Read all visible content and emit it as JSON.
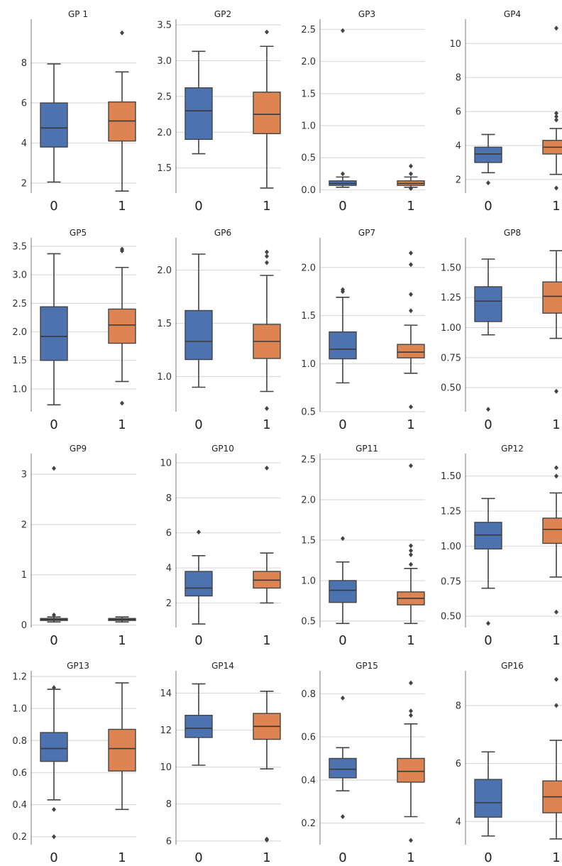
{
  "colors": {
    "group0": "#4c72b0",
    "group1": "#dd8452",
    "grid": "#dadada",
    "spine": "#777777",
    "whisker": "#444444"
  },
  "chart_data": [
    {
      "type": "box",
      "title": "GP 1",
      "categories": [
        "0",
        "1"
      ],
      "ylim": [
        1.5,
        9.9
      ],
      "yticks": [
        2,
        4,
        6,
        8
      ],
      "boxes": [
        {
          "group": "0",
          "min": 2.05,
          "q1": 3.8,
          "median": 4.75,
          "q3": 6.0,
          "max": 7.95,
          "outliers": []
        },
        {
          "group": "1",
          "min": 1.6,
          "q1": 4.1,
          "median": 5.1,
          "q3": 6.05,
          "max": 7.55,
          "outliers": [
            9.5
          ]
        }
      ]
    },
    {
      "type": "box",
      "title": "GP2",
      "categories": [
        "0",
        "1"
      ],
      "ylim": [
        1.15,
        3.5
      ],
      "yticks": [
        1.5,
        2.0,
        2.5,
        3.0,
        3.5
      ],
      "boxes": [
        {
          "group": "0",
          "min": 1.7,
          "q1": 1.9,
          "median": 2.3,
          "q3": 2.62,
          "max": 3.13,
          "outliers": []
        },
        {
          "group": "1",
          "min": 1.22,
          "q1": 1.98,
          "median": 2.25,
          "q3": 2.56,
          "max": 3.2,
          "outliers": [
            3.4
          ]
        }
      ]
    },
    {
      "type": "box",
      "title": "GP3",
      "categories": [
        "0",
        "1"
      ],
      "ylim": [
        -0.05,
        2.57
      ],
      "yticks": [
        0.0,
        0.5,
        1.0,
        1.5,
        2.0,
        2.5
      ],
      "boxes": [
        {
          "group": "0",
          "min": 0.04,
          "q1": 0.07,
          "median": 0.1,
          "q3": 0.14,
          "max": 0.2,
          "outliers": [
            0.25,
            2.48
          ]
        },
        {
          "group": "1",
          "min": 0.04,
          "q1": 0.07,
          "median": 0.1,
          "q3": 0.14,
          "max": 0.2,
          "outliers": [
            0.02,
            0.25,
            0.37
          ]
        }
      ]
    },
    {
      "type": "box",
      "title": "GP4",
      "categories": [
        "0",
        "1"
      ],
      "ylim": [
        1.2,
        11.1
      ],
      "yticks": [
        2,
        4,
        6,
        8,
        10
      ],
      "boxes": [
        {
          "group": "0",
          "min": 2.4,
          "q1": 3.0,
          "median": 3.5,
          "q3": 3.9,
          "max": 4.65,
          "outliers": [
            1.8
          ]
        },
        {
          "group": "1",
          "min": 2.3,
          "q1": 3.5,
          "median": 3.9,
          "q3": 4.3,
          "max": 5.0,
          "outliers": [
            1.5,
            5.5,
            5.7,
            5.9,
            10.9
          ]
        }
      ]
    },
    {
      "type": "box",
      "title": "GP5",
      "categories": [
        "0",
        "1"
      ],
      "ylim": [
        0.6,
        3.55
      ],
      "yticks": [
        1.0,
        1.5,
        2.0,
        2.5,
        3.0,
        3.5
      ],
      "boxes": [
        {
          "group": "0",
          "min": 0.72,
          "q1": 1.5,
          "median": 1.92,
          "q3": 2.44,
          "max": 3.37,
          "outliers": []
        },
        {
          "group": "1",
          "min": 1.13,
          "q1": 1.8,
          "median": 2.12,
          "q3": 2.4,
          "max": 3.13,
          "outliers": [
            0.75,
            3.42,
            3.45
          ]
        }
      ]
    },
    {
      "type": "box",
      "title": "GP6",
      "categories": [
        "0",
        "1"
      ],
      "ylim": [
        0.67,
        2.25
      ],
      "yticks": [
        1.0,
        1.5,
        2.0
      ],
      "boxes": [
        {
          "group": "0",
          "min": 0.9,
          "q1": 1.16,
          "median": 1.33,
          "q3": 1.62,
          "max": 2.15,
          "outliers": []
        },
        {
          "group": "1",
          "min": 0.86,
          "q1": 1.17,
          "median": 1.33,
          "q3": 1.49,
          "max": 1.95,
          "outliers": [
            0.7,
            2.07,
            2.13,
            2.17
          ]
        }
      ]
    },
    {
      "type": "box",
      "title": "GP7",
      "categories": [
        "0",
        "1"
      ],
      "ylim": [
        0.5,
        2.25
      ],
      "yticks": [
        0.5,
        1.0,
        1.5,
        2.0
      ],
      "boxes": [
        {
          "group": "0",
          "min": 0.8,
          "q1": 1.05,
          "median": 1.15,
          "q3": 1.33,
          "max": 1.69,
          "outliers": [
            1.75,
            1.77
          ]
        },
        {
          "group": "1",
          "min": 0.9,
          "q1": 1.06,
          "median": 1.12,
          "q3": 1.2,
          "max": 1.4,
          "outliers": [
            0.55,
            1.55,
            1.72,
            2.03,
            2.15
          ]
        }
      ]
    },
    {
      "type": "box",
      "title": "GP8",
      "categories": [
        "0",
        "1"
      ],
      "ylim": [
        0.3,
        1.7
      ],
      "yticks": [
        0.5,
        0.75,
        1.0,
        1.25,
        1.5
      ],
      "boxes": [
        {
          "group": "0",
          "min": 0.94,
          "q1": 1.05,
          "median": 1.22,
          "q3": 1.34,
          "max": 1.57,
          "outliers": [
            0.32
          ]
        },
        {
          "group": "1",
          "min": 0.91,
          "q1": 1.12,
          "median": 1.26,
          "q3": 1.38,
          "max": 1.64,
          "outliers": [
            0.47
          ]
        }
      ]
    },
    {
      "type": "box",
      "title": "GP9",
      "categories": [
        "0",
        "1"
      ],
      "ylim": [
        -0.05,
        3.3
      ],
      "yticks": [
        0,
        1,
        2,
        3
      ],
      "boxes": [
        {
          "group": "0",
          "min": 0.06,
          "q1": 0.09,
          "median": 0.11,
          "q3": 0.13,
          "max": 0.16,
          "outliers": [
            0.2,
            3.12
          ]
        },
        {
          "group": "1",
          "min": 0.06,
          "q1": 0.09,
          "median": 0.11,
          "q3": 0.13,
          "max": 0.16,
          "outliers": []
        }
      ]
    },
    {
      "type": "box",
      "title": "GP10",
      "categories": [
        "0",
        "1"
      ],
      "ylim": [
        0.6,
        10.2
      ],
      "yticks": [
        2,
        4,
        6,
        8,
        10
      ],
      "boxes": [
        {
          "group": "0",
          "min": 0.8,
          "q1": 2.4,
          "median": 2.85,
          "q3": 3.8,
          "max": 4.7,
          "outliers": [
            6.05
          ]
        },
        {
          "group": "1",
          "min": 2.0,
          "q1": 2.85,
          "median": 3.3,
          "q3": 3.8,
          "max": 4.85,
          "outliers": [
            9.7
          ]
        }
      ]
    },
    {
      "type": "box",
      "title": "GP11",
      "categories": [
        "0",
        "1"
      ],
      "ylim": [
        0.42,
        2.5
      ],
      "yticks": [
        0.5,
        1.0,
        1.5,
        2.0,
        2.5
      ],
      "boxes": [
        {
          "group": "0",
          "min": 0.47,
          "q1": 0.73,
          "median": 0.88,
          "q3": 1.0,
          "max": 1.23,
          "outliers": [
            1.52
          ]
        },
        {
          "group": "1",
          "min": 0.47,
          "q1": 0.7,
          "median": 0.78,
          "q3": 0.86,
          "max": 1.15,
          "outliers": [
            1.2,
            1.32,
            1.37,
            1.43,
            2.42
          ]
        }
      ]
    },
    {
      "type": "box",
      "title": "GP12",
      "categories": [
        "0",
        "1"
      ],
      "ylim": [
        0.42,
        1.62
      ],
      "yticks": [
        0.5,
        0.75,
        1.0,
        1.25,
        1.5
      ],
      "boxes": [
        {
          "group": "0",
          "min": 0.7,
          "q1": 0.98,
          "median": 1.08,
          "q3": 1.17,
          "max": 1.34,
          "outliers": [
            0.45
          ]
        },
        {
          "group": "1",
          "min": 0.78,
          "q1": 1.02,
          "median": 1.12,
          "q3": 1.2,
          "max": 1.38,
          "outliers": [
            0.53,
            1.5,
            1.56
          ]
        }
      ]
    },
    {
      "type": "box",
      "title": "GP13",
      "categories": [
        "0",
        "1"
      ],
      "ylim": [
        0.15,
        1.2
      ],
      "yticks": [
        0.2,
        0.4,
        0.6,
        0.8,
        1.0,
        1.2
      ],
      "boxes": [
        {
          "group": "0",
          "min": 0.43,
          "q1": 0.67,
          "median": 0.75,
          "q3": 0.85,
          "max": 1.12,
          "outliers": [
            0.2,
            0.37,
            1.13
          ]
        },
        {
          "group": "1",
          "min": 0.37,
          "q1": 0.61,
          "median": 0.75,
          "q3": 0.87,
          "max": 1.16,
          "outliers": []
        }
      ]
    },
    {
      "type": "box",
      "title": "GP14",
      "categories": [
        "0",
        "1"
      ],
      "ylim": [
        5.8,
        14.9
      ],
      "yticks": [
        6,
        8,
        10,
        12,
        14
      ],
      "boxes": [
        {
          "group": "0",
          "min": 10.1,
          "q1": 11.6,
          "median": 12.1,
          "q3": 12.8,
          "max": 14.5,
          "outliers": []
        },
        {
          "group": "1",
          "min": 9.9,
          "q1": 11.5,
          "median": 12.2,
          "q3": 12.9,
          "max": 14.1,
          "outliers": [
            6.1,
            6.05
          ]
        }
      ]
    },
    {
      "type": "box",
      "title": "GP15",
      "categories": [
        "0",
        "1"
      ],
      "ylim": [
        0.1,
        0.88
      ],
      "yticks": [
        0.2,
        0.4,
        0.6,
        0.8
      ],
      "boxes": [
        {
          "group": "0",
          "min": 0.35,
          "q1": 0.41,
          "median": 0.45,
          "q3": 0.5,
          "max": 0.55,
          "outliers": [
            0.23,
            0.78
          ]
        },
        {
          "group": "1",
          "min": 0.23,
          "q1": 0.39,
          "median": 0.44,
          "q3": 0.5,
          "max": 0.66,
          "outliers": [
            0.12,
            0.7,
            0.72,
            0.85
          ]
        }
      ]
    },
    {
      "type": "box",
      "title": "GP16",
      "categories": [
        "0",
        "1"
      ],
      "ylim": [
        3.2,
        9.0
      ],
      "yticks": [
        4,
        6,
        8
      ],
      "boxes": [
        {
          "group": "0",
          "min": 3.5,
          "q1": 4.15,
          "median": 4.65,
          "q3": 5.45,
          "max": 6.4,
          "outliers": []
        },
        {
          "group": "1",
          "min": 3.4,
          "q1": 4.3,
          "median": 4.85,
          "q3": 5.4,
          "max": 6.8,
          "outliers": [
            8.0,
            8.9
          ]
        }
      ]
    }
  ]
}
